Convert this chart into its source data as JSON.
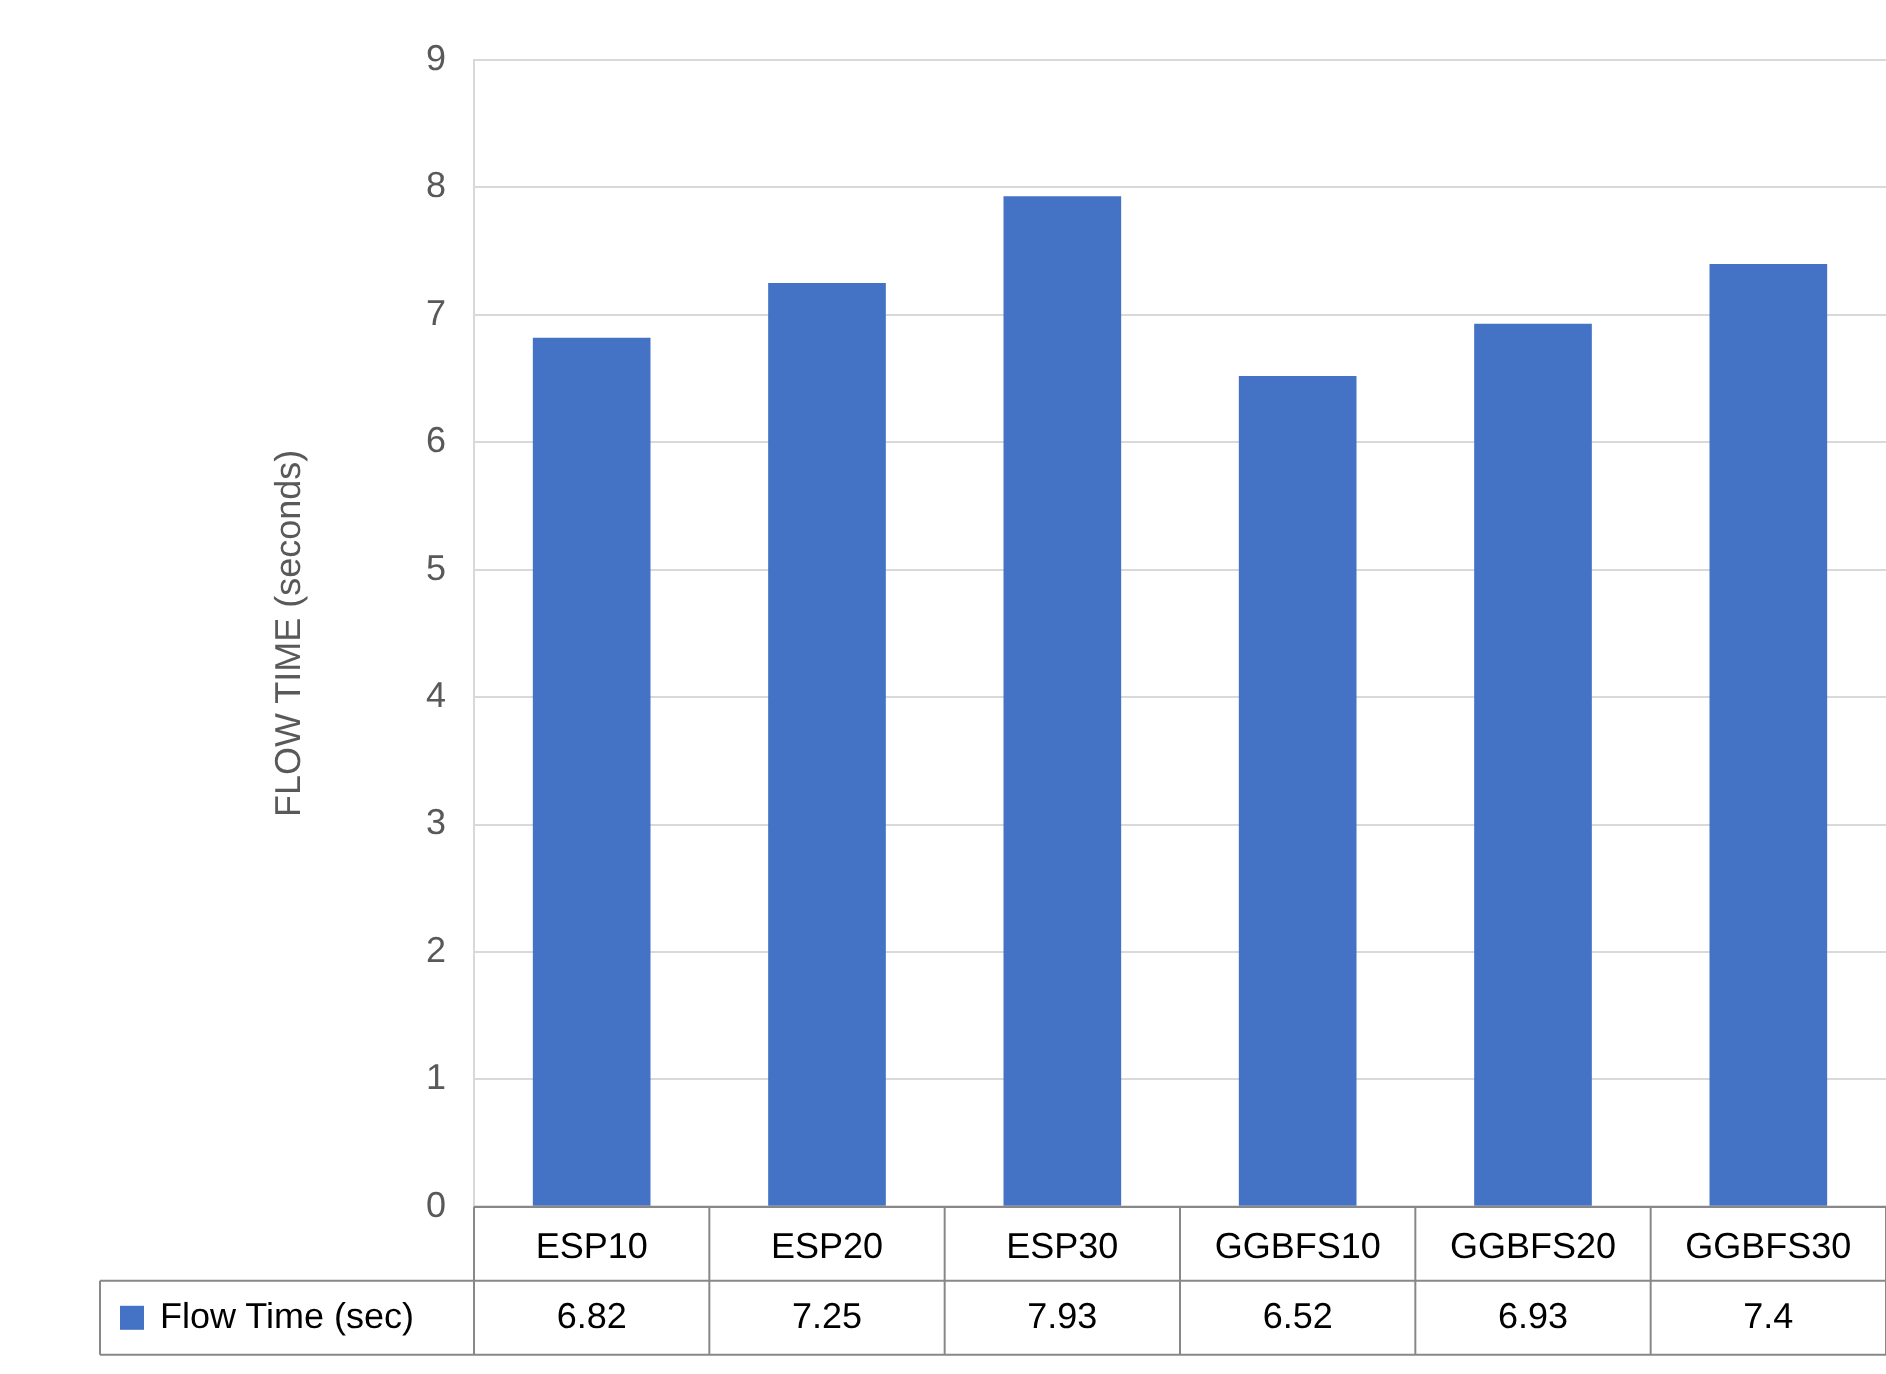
{
  "chart_data": {
    "type": "bar",
    "ylabel": "FLOW TIME (seconds)",
    "categories": [
      "ESP10",
      "ESP20",
      "ESP30",
      "GGBFS10",
      "GGBFS20",
      "GGBFS30"
    ],
    "series": [
      {
        "name": "Flow Time (sec)",
        "color": "#4472c4",
        "values": [
          6.82,
          7.25,
          7.93,
          6.52,
          6.93,
          7.4
        ]
      }
    ],
    "ylim": [
      0,
      9
    ],
    "yticks": [
      0,
      1,
      2,
      3,
      4,
      5,
      6,
      7,
      8,
      9
    ],
    "grid": "y",
    "legend": "bottom",
    "data_labels": true
  }
}
